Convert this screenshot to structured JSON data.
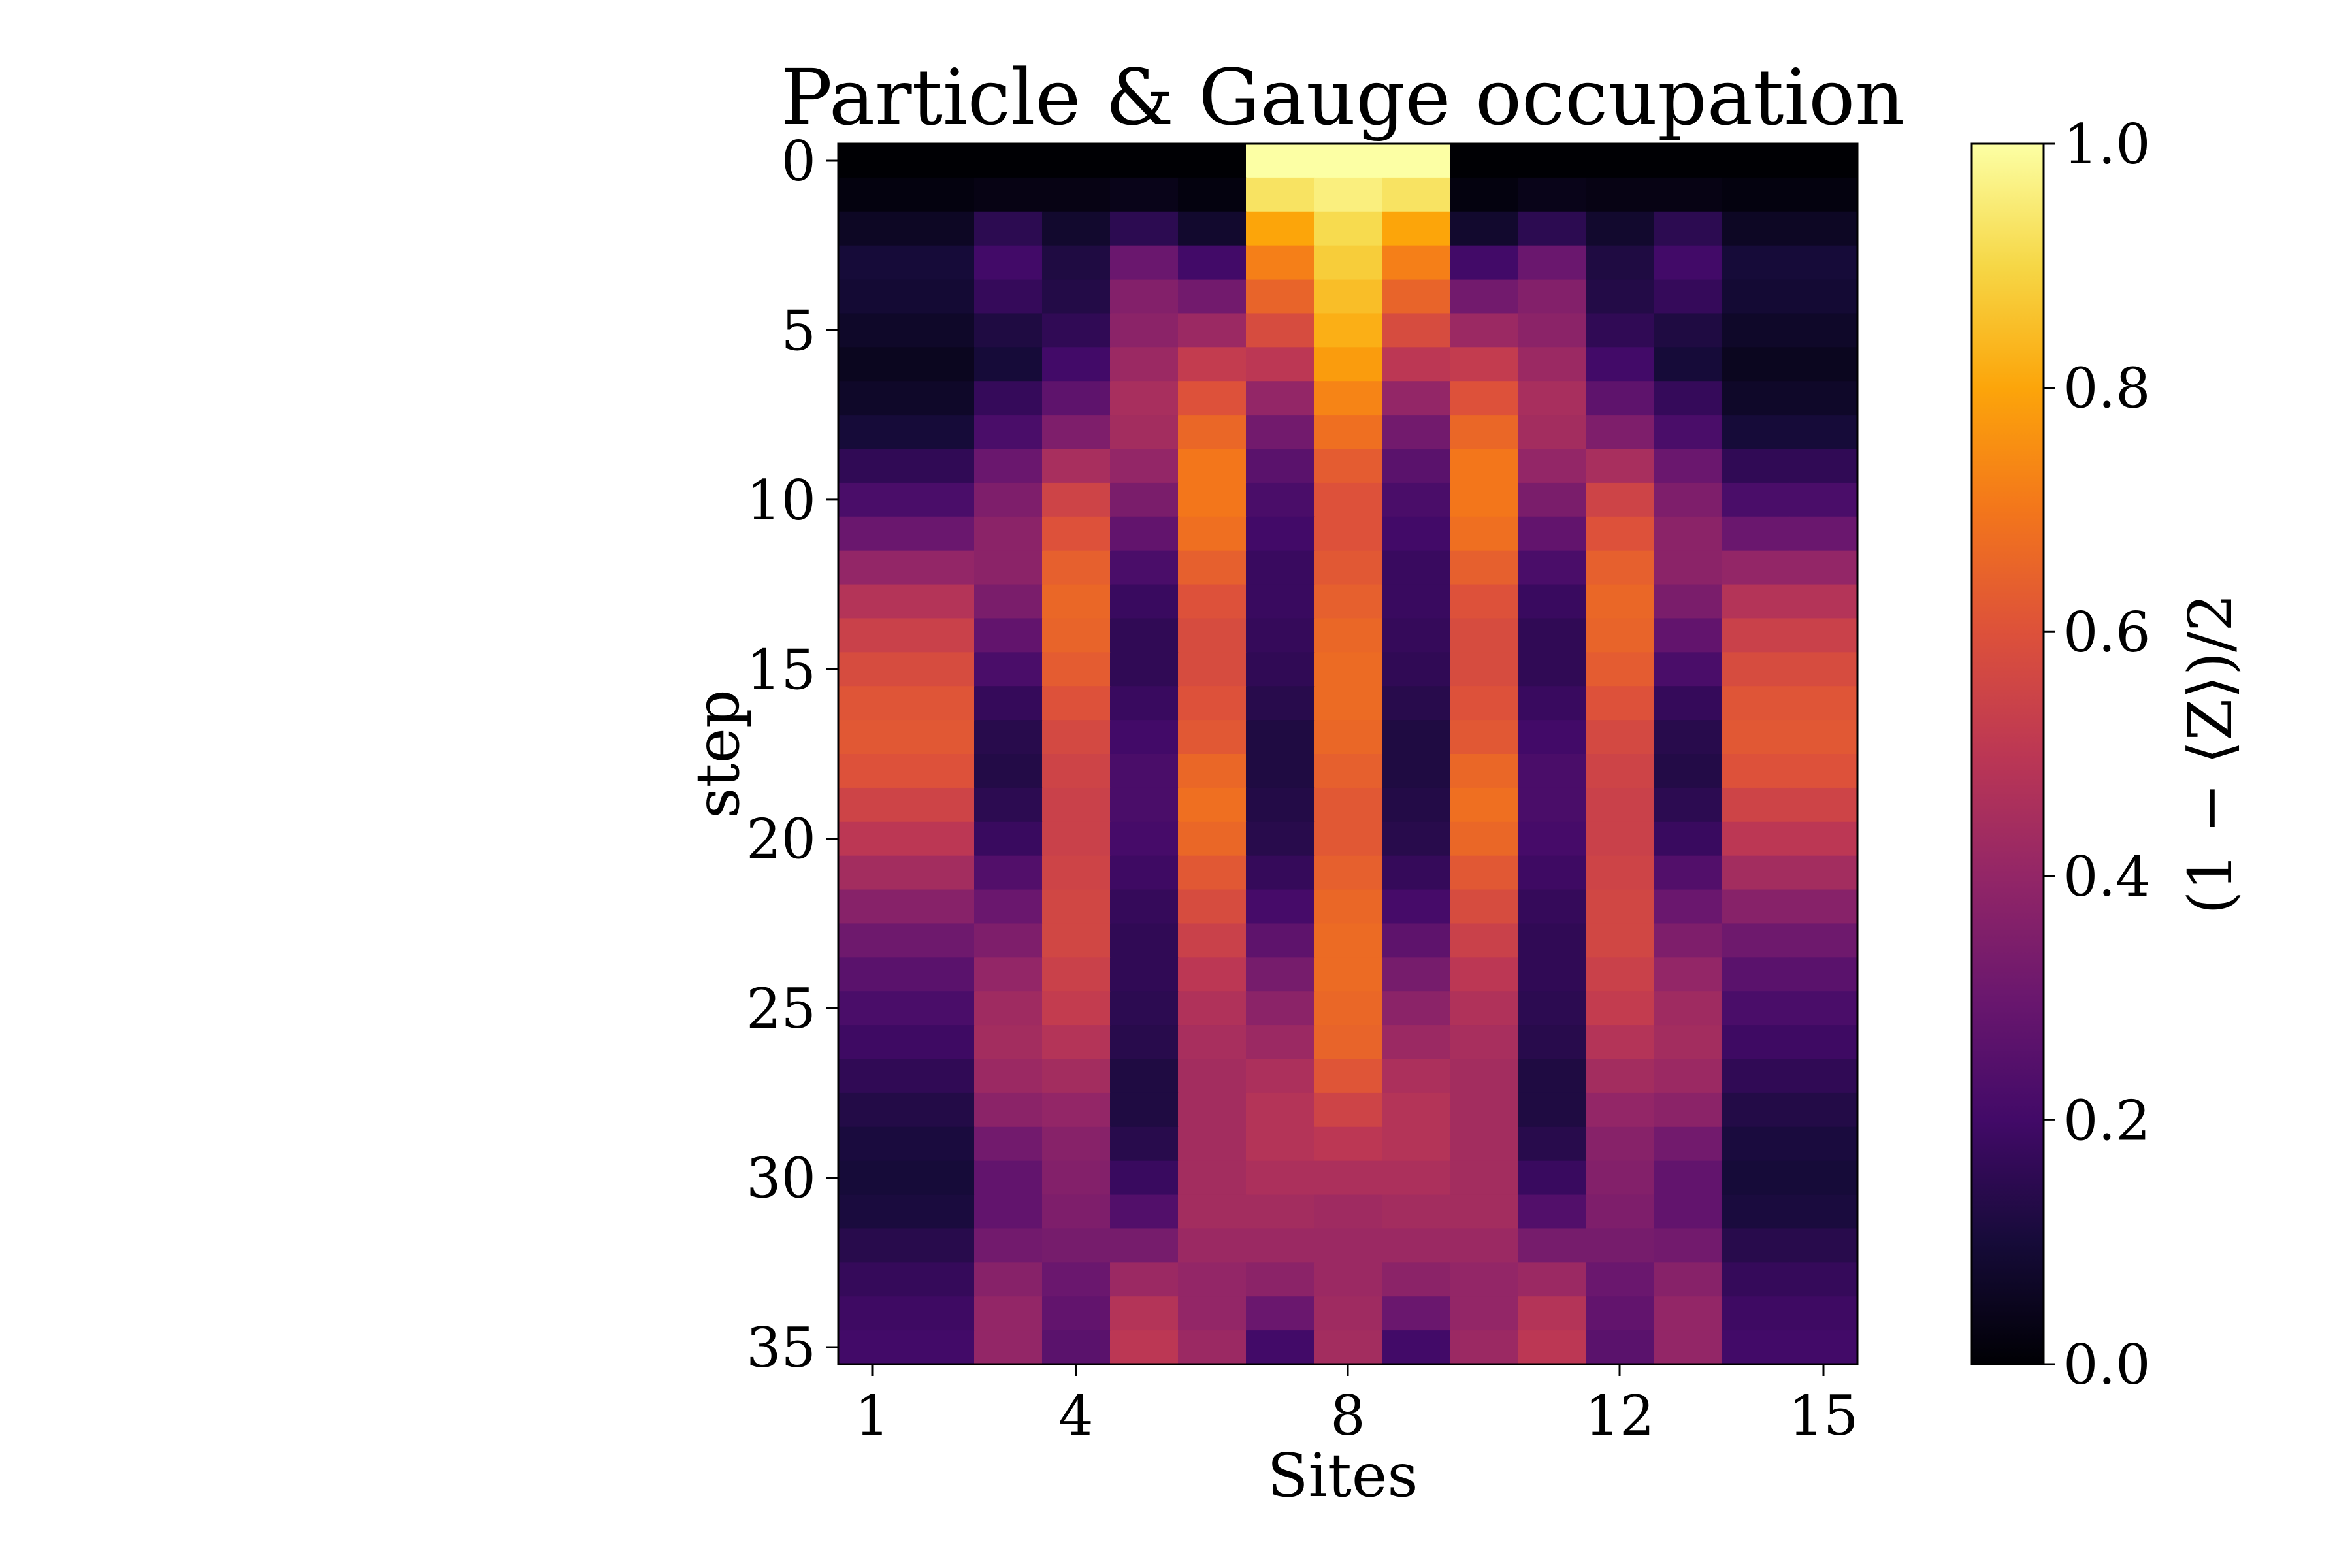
{
  "chart_data": {
    "type": "heatmap",
    "title": "Particle & Gauge occupation",
    "xlabel": "Sites",
    "ylabel": "step",
    "colorbar_label": "(1 − ⟨Z⟩)/2",
    "colormap": "inferno",
    "value_range": [
      0.0,
      1.0
    ],
    "x_range": [
      0.5,
      15.5
    ],
    "y_range": [
      -0.5,
      35.5
    ],
    "y_inverted": true,
    "x_ticks": [
      1,
      4,
      8,
      12,
      15
    ],
    "y_ticks": [
      0,
      5,
      10,
      15,
      20,
      25,
      30,
      35
    ],
    "colorbar_ticks": [
      "0.0",
      "0.2",
      "0.4",
      "0.6",
      "0.8",
      "1.0"
    ],
    "grid": false,
    "x_edges": [
      0.5,
      2.5,
      3.5,
      4.5,
      5.5,
      6.5,
      7.5,
      8.5,
      9.5,
      10.5,
      11.5,
      12.5,
      13.5,
      14.5,
      15.5
    ],
    "steps": [
      0,
      1,
      2,
      3,
      4,
      5,
      6,
      7,
      8,
      9,
      10,
      11,
      12,
      13,
      14,
      15,
      16,
      17,
      18,
      19,
      20,
      21,
      22,
      23,
      24,
      25,
      26,
      27,
      28,
      29,
      30,
      31,
      32,
      33,
      34,
      35
    ],
    "values": [
      [
        0.0,
        0.0,
        0.0,
        0.0,
        0.0,
        1.0,
        1.0,
        1.0,
        0.0,
        0.0,
        0.0,
        0.0,
        0.0,
        0.0
      ],
      [
        0.02,
        0.03,
        0.03,
        0.04,
        0.02,
        0.93,
        0.96,
        0.93,
        0.02,
        0.04,
        0.03,
        0.03,
        0.02,
        0.02
      ],
      [
        0.06,
        0.15,
        0.08,
        0.15,
        0.08,
        0.8,
        0.91,
        0.8,
        0.08,
        0.15,
        0.08,
        0.15,
        0.06,
        0.06
      ],
      [
        0.1,
        0.2,
        0.12,
        0.3,
        0.2,
        0.72,
        0.88,
        0.72,
        0.2,
        0.3,
        0.12,
        0.2,
        0.1,
        0.1
      ],
      [
        0.09,
        0.17,
        0.13,
        0.36,
        0.32,
        0.65,
        0.85,
        0.65,
        0.32,
        0.36,
        0.13,
        0.17,
        0.09,
        0.09
      ],
      [
        0.07,
        0.12,
        0.16,
        0.38,
        0.42,
        0.58,
        0.82,
        0.58,
        0.42,
        0.38,
        0.16,
        0.12,
        0.07,
        0.07
      ],
      [
        0.05,
        0.1,
        0.2,
        0.42,
        0.52,
        0.5,
        0.78,
        0.5,
        0.52,
        0.42,
        0.2,
        0.1,
        0.05,
        0.05
      ],
      [
        0.07,
        0.17,
        0.27,
        0.45,
        0.6,
        0.4,
        0.73,
        0.4,
        0.6,
        0.45,
        0.27,
        0.17,
        0.07,
        0.07
      ],
      [
        0.1,
        0.22,
        0.35,
        0.44,
        0.66,
        0.32,
        0.68,
        0.32,
        0.66,
        0.44,
        0.35,
        0.22,
        0.1,
        0.1
      ],
      [
        0.16,
        0.3,
        0.45,
        0.4,
        0.7,
        0.26,
        0.63,
        0.26,
        0.7,
        0.4,
        0.45,
        0.3,
        0.16,
        0.16
      ],
      [
        0.22,
        0.35,
        0.55,
        0.34,
        0.7,
        0.22,
        0.6,
        0.22,
        0.7,
        0.34,
        0.55,
        0.35,
        0.22,
        0.22
      ],
      [
        0.3,
        0.38,
        0.6,
        0.28,
        0.68,
        0.2,
        0.6,
        0.2,
        0.68,
        0.28,
        0.6,
        0.38,
        0.3,
        0.3
      ],
      [
        0.4,
        0.38,
        0.64,
        0.22,
        0.64,
        0.18,
        0.62,
        0.18,
        0.64,
        0.22,
        0.64,
        0.38,
        0.4,
        0.4
      ],
      [
        0.48,
        0.34,
        0.66,
        0.18,
        0.6,
        0.18,
        0.64,
        0.18,
        0.6,
        0.18,
        0.66,
        0.34,
        0.48,
        0.48
      ],
      [
        0.54,
        0.28,
        0.65,
        0.16,
        0.58,
        0.17,
        0.66,
        0.17,
        0.58,
        0.16,
        0.65,
        0.28,
        0.54,
        0.54
      ],
      [
        0.58,
        0.22,
        0.63,
        0.16,
        0.58,
        0.16,
        0.67,
        0.16,
        0.58,
        0.16,
        0.63,
        0.22,
        0.58,
        0.58
      ],
      [
        0.61,
        0.17,
        0.6,
        0.18,
        0.6,
        0.14,
        0.67,
        0.14,
        0.6,
        0.18,
        0.6,
        0.17,
        0.61,
        0.61
      ],
      [
        0.62,
        0.14,
        0.57,
        0.2,
        0.62,
        0.12,
        0.66,
        0.12,
        0.62,
        0.2,
        0.57,
        0.14,
        0.62,
        0.62
      ],
      [
        0.6,
        0.13,
        0.55,
        0.22,
        0.66,
        0.12,
        0.64,
        0.12,
        0.66,
        0.22,
        0.55,
        0.13,
        0.6,
        0.6
      ],
      [
        0.55,
        0.15,
        0.54,
        0.22,
        0.68,
        0.13,
        0.62,
        0.13,
        0.68,
        0.22,
        0.54,
        0.15,
        0.55,
        0.55
      ],
      [
        0.5,
        0.18,
        0.54,
        0.21,
        0.66,
        0.14,
        0.62,
        0.14,
        0.66,
        0.21,
        0.54,
        0.18,
        0.5,
        0.5
      ],
      [
        0.44,
        0.24,
        0.55,
        0.19,
        0.62,
        0.17,
        0.64,
        0.17,
        0.62,
        0.19,
        0.55,
        0.24,
        0.44,
        0.44
      ],
      [
        0.37,
        0.3,
        0.56,
        0.17,
        0.58,
        0.21,
        0.66,
        0.21,
        0.58,
        0.17,
        0.56,
        0.3,
        0.37,
        0.37
      ],
      [
        0.31,
        0.35,
        0.56,
        0.16,
        0.54,
        0.27,
        0.67,
        0.27,
        0.54,
        0.16,
        0.56,
        0.35,
        0.31,
        0.31
      ],
      [
        0.26,
        0.4,
        0.54,
        0.16,
        0.5,
        0.33,
        0.67,
        0.33,
        0.5,
        0.16,
        0.54,
        0.4,
        0.26,
        0.26
      ],
      [
        0.22,
        0.43,
        0.52,
        0.15,
        0.47,
        0.38,
        0.66,
        0.38,
        0.47,
        0.15,
        0.52,
        0.43,
        0.22,
        0.22
      ],
      [
        0.19,
        0.44,
        0.48,
        0.14,
        0.45,
        0.42,
        0.65,
        0.42,
        0.45,
        0.14,
        0.48,
        0.44,
        0.19,
        0.19
      ],
      [
        0.16,
        0.42,
        0.44,
        0.12,
        0.44,
        0.46,
        0.61,
        0.46,
        0.44,
        0.12,
        0.44,
        0.42,
        0.16,
        0.16
      ],
      [
        0.13,
        0.38,
        0.4,
        0.12,
        0.44,
        0.48,
        0.55,
        0.48,
        0.44,
        0.12,
        0.4,
        0.38,
        0.13,
        0.13
      ],
      [
        0.11,
        0.32,
        0.37,
        0.14,
        0.44,
        0.48,
        0.5,
        0.48,
        0.44,
        0.14,
        0.37,
        0.32,
        0.11,
        0.11
      ],
      [
        0.1,
        0.28,
        0.36,
        0.18,
        0.44,
        0.46,
        0.46,
        0.46,
        0.44,
        0.18,
        0.36,
        0.28,
        0.1,
        0.1
      ],
      [
        0.11,
        0.28,
        0.35,
        0.24,
        0.44,
        0.44,
        0.43,
        0.44,
        0.44,
        0.24,
        0.35,
        0.28,
        0.11,
        0.11
      ],
      [
        0.14,
        0.32,
        0.33,
        0.33,
        0.42,
        0.42,
        0.42,
        0.42,
        0.42,
        0.33,
        0.33,
        0.32,
        0.14,
        0.14
      ],
      [
        0.17,
        0.37,
        0.3,
        0.42,
        0.4,
        0.38,
        0.42,
        0.38,
        0.4,
        0.42,
        0.3,
        0.37,
        0.17,
        0.17
      ],
      [
        0.19,
        0.4,
        0.28,
        0.48,
        0.4,
        0.3,
        0.43,
        0.3,
        0.4,
        0.48,
        0.28,
        0.4,
        0.19,
        0.19
      ],
      [
        0.2,
        0.4,
        0.26,
        0.5,
        0.42,
        0.2,
        0.44,
        0.2,
        0.42,
        0.5,
        0.26,
        0.4,
        0.2,
        0.2
      ]
    ]
  }
}
